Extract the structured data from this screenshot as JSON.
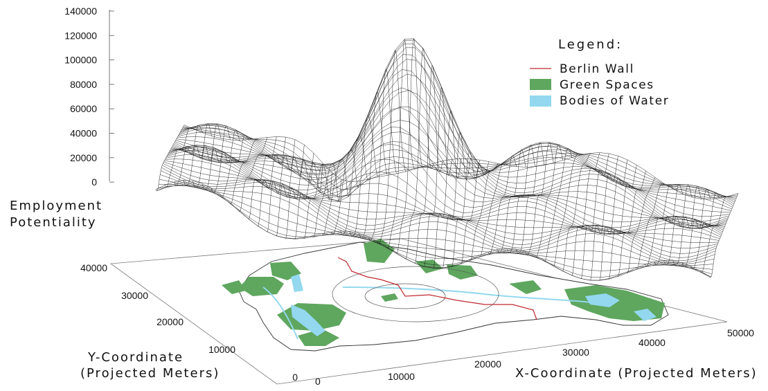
{
  "chart_data": {
    "type": "surface3d",
    "z_axis": {
      "label_lines": [
        "Employment",
        "Potentiality"
      ],
      "ticks": [
        "140000",
        "120000",
        "100000",
        "80000",
        "60000",
        "40000",
        "20000",
        "0"
      ]
    },
    "y_axis": {
      "label_lines": [
        "Y-Coordinate",
        "(Projected Meters)"
      ],
      "ticks": [
        "40000",
        "30000",
        "20000",
        "10000",
        "0"
      ]
    },
    "x_axis": {
      "label": "X-Coordinate (Projected Meters)",
      "ticks": [
        "0",
        "10000",
        "20000",
        "30000",
        "40000",
        "50000"
      ]
    },
    "legend": {
      "title": "Legend:",
      "items": [
        {
          "label": "Berlin Wall",
          "color": "#c0282d",
          "kind": "line"
        },
        {
          "label": "Green Spaces",
          "color": "#5fa65f",
          "kind": "patch"
        },
        {
          "label": "Bodies of Water",
          "color": "#93d8ef",
          "kind": "patch"
        }
      ]
    },
    "surface": {
      "peak": {
        "x": 21000,
        "y": 25000,
        "z": 110000
      },
      "min": {
        "x": 14000,
        "y": 37000,
        "z": -28000
      }
    }
  }
}
